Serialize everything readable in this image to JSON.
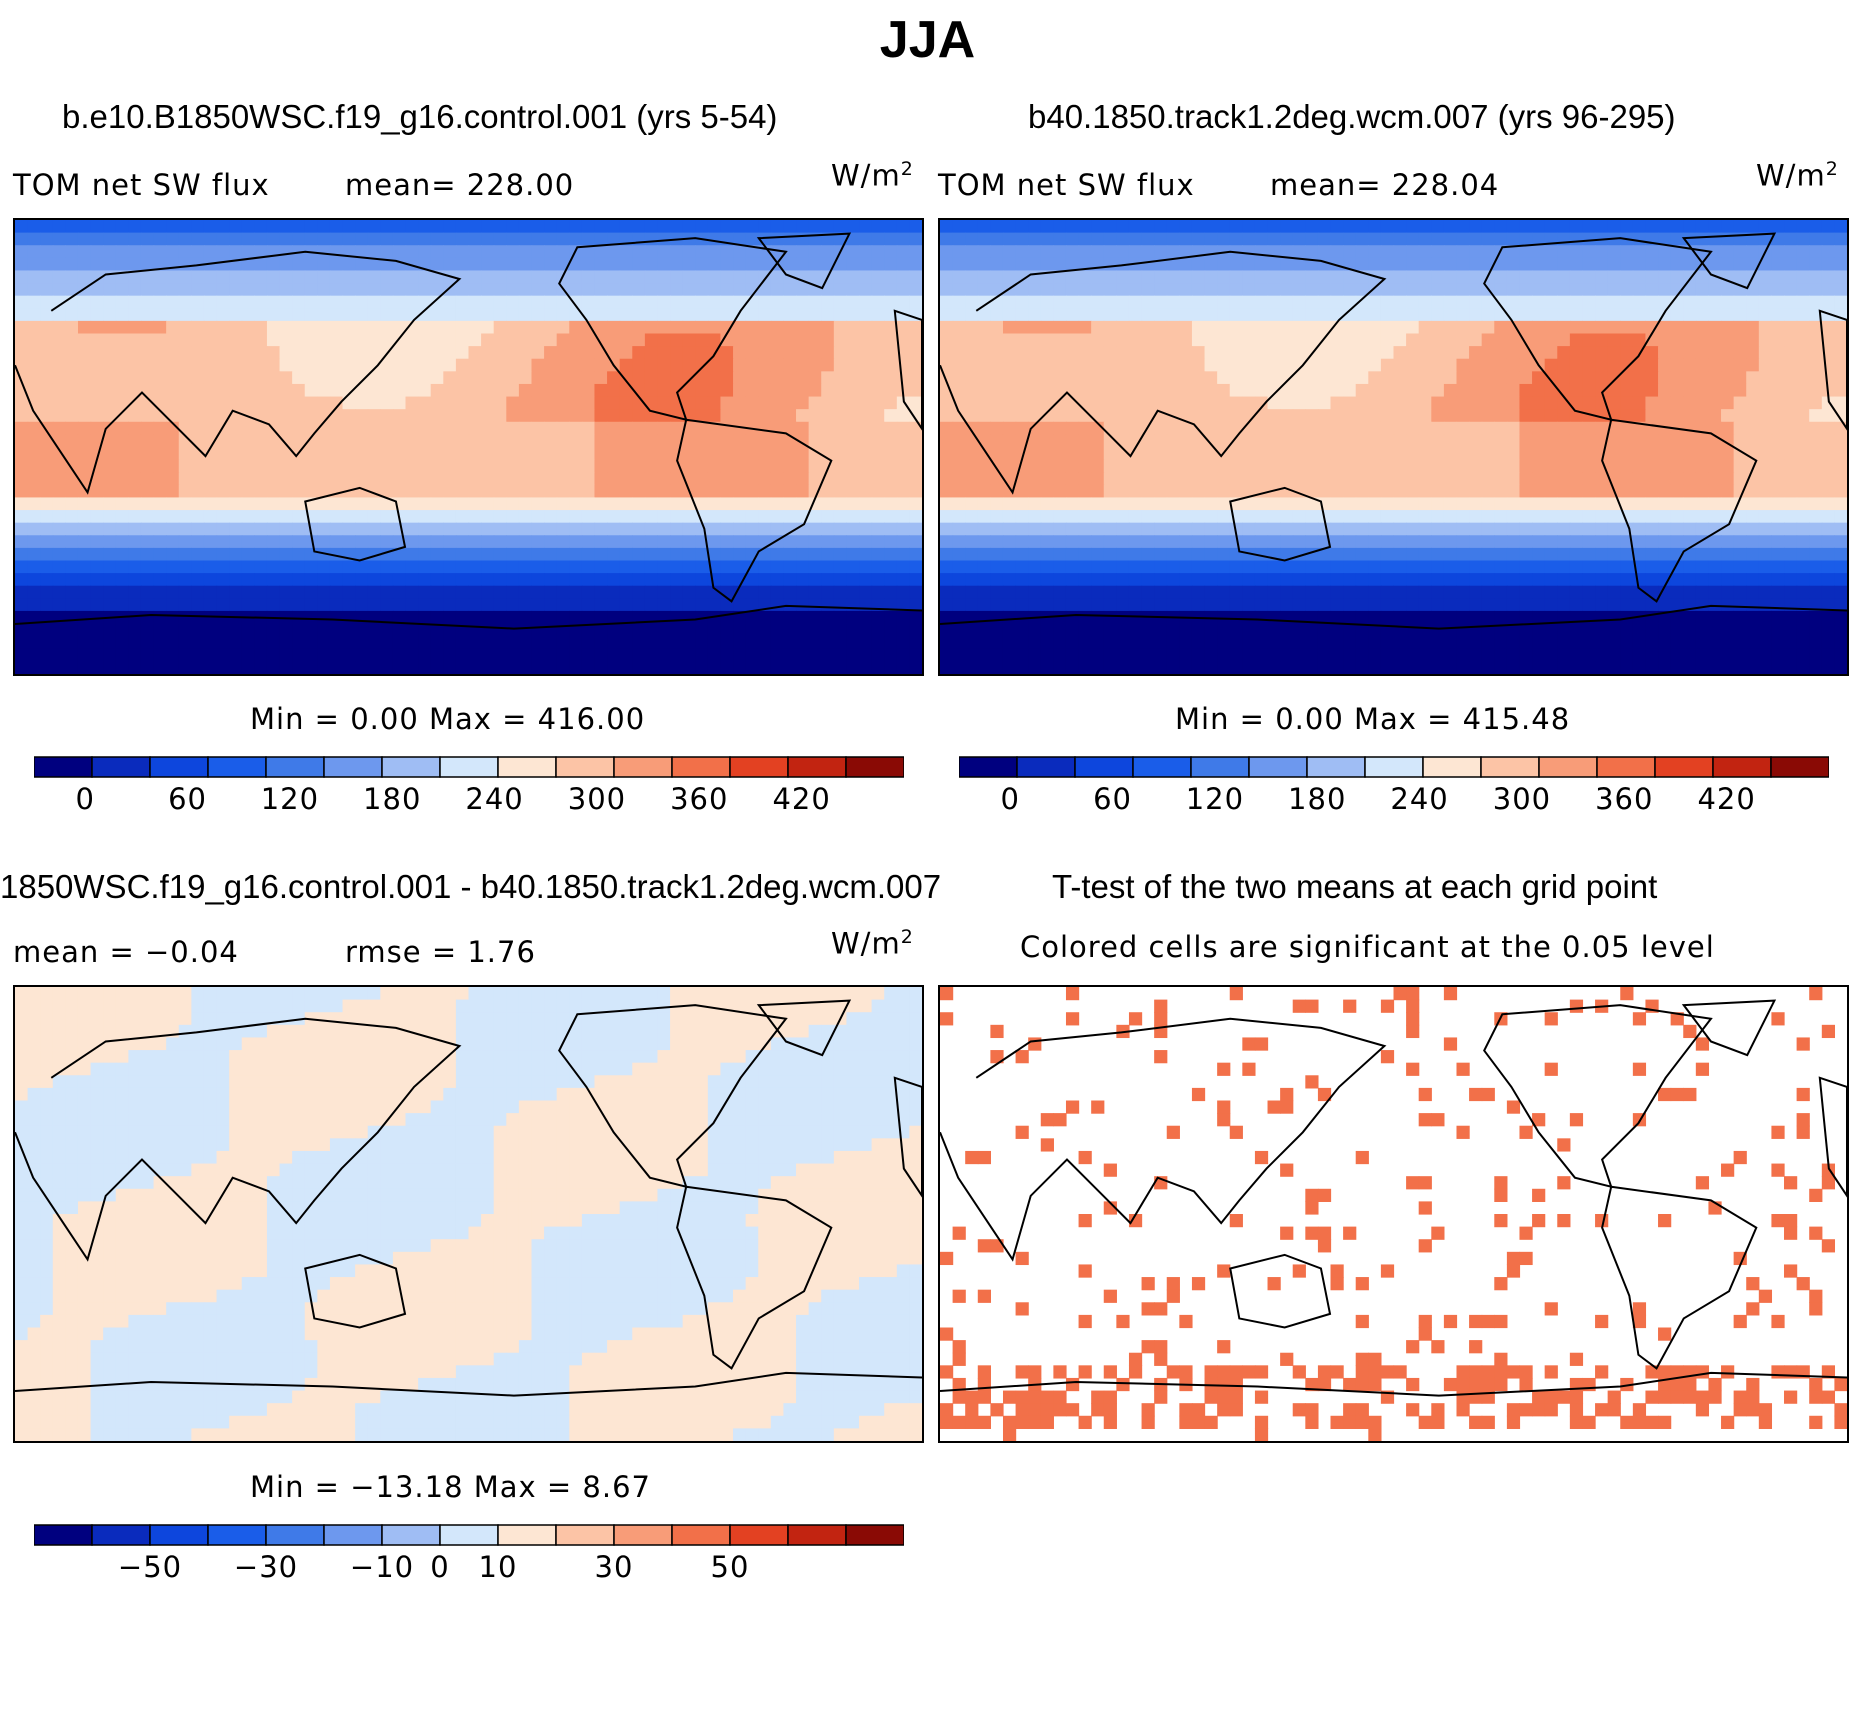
{
  "title": "JJA",
  "colors": {
    "fill_palette": [
      "#00007f",
      "#0a2bbd",
      "#0d46dd",
      "#1a5de9",
      "#3f7ae8",
      "#6d98ee",
      "#9fbdf4",
      "#d3e7fb",
      "#fde6d3",
      "#fcc4a6",
      "#f89c78",
      "#f27049",
      "#e34122",
      "#c22411",
      "#8a0a05"
    ]
  },
  "chart_data": [
    {
      "type": "heatmap",
      "id": "panel-control",
      "title": "b.e10.B1850WSC.f19_g16.control.001 (yrs 5-54)",
      "variable": "TOM net SW flux",
      "stat_text": "mean= 228.00",
      "units": "W/m",
      "units_exp": "2",
      "min_max_text": "Min =    0.00 Max = 416.00",
      "colorbar": {
        "ticks": [
          "0",
          "60",
          "120",
          "180",
          "240",
          "300",
          "360",
          "420"
        ],
        "tick_values": [
          0,
          60,
          120,
          180,
          240,
          300,
          360,
          420
        ],
        "range": [
          -30,
          480
        ]
      }
    },
    {
      "type": "heatmap",
      "id": "panel-case",
      "title": "b40.1850.track1.2deg.wcm.007 (yrs 96-295)",
      "variable": "TOM net SW flux",
      "stat_text": "mean= 228.04",
      "units": "W/m",
      "units_exp": "2",
      "min_max_text": "Min =    0.00 Max = 415.48",
      "colorbar": {
        "ticks": [
          "0",
          "60",
          "120",
          "180",
          "240",
          "300",
          "360",
          "420"
        ],
        "tick_values": [
          0,
          60,
          120,
          180,
          240,
          300,
          360,
          420
        ],
        "range": [
          -30,
          480
        ]
      }
    },
    {
      "type": "heatmap",
      "id": "panel-difference",
      "title": "1850WSC.f19_g16.control.001 - b40.1850.track1.2deg.wcm.007",
      "stat_text_mean": "mean =   −0.04",
      "stat_text_rmse": "rmse =    1.76",
      "units": "W/m",
      "units_exp": "2",
      "min_max_text": "Min = −13.18 Max =    8.67",
      "colorbar": {
        "ticks": [
          "−50",
          "−30",
          "−10",
          "0",
          "10",
          "30",
          "50"
        ],
        "tick_values": [
          -50,
          -30,
          -10,
          0,
          10,
          30,
          50
        ],
        "range": [
          -70,
          80
        ]
      }
    },
    {
      "type": "heatmap",
      "id": "panel-ttest",
      "title": "T-test of the two means at each grid point",
      "subtitle": "Colored cells are significant at the 0.05 level"
    }
  ]
}
